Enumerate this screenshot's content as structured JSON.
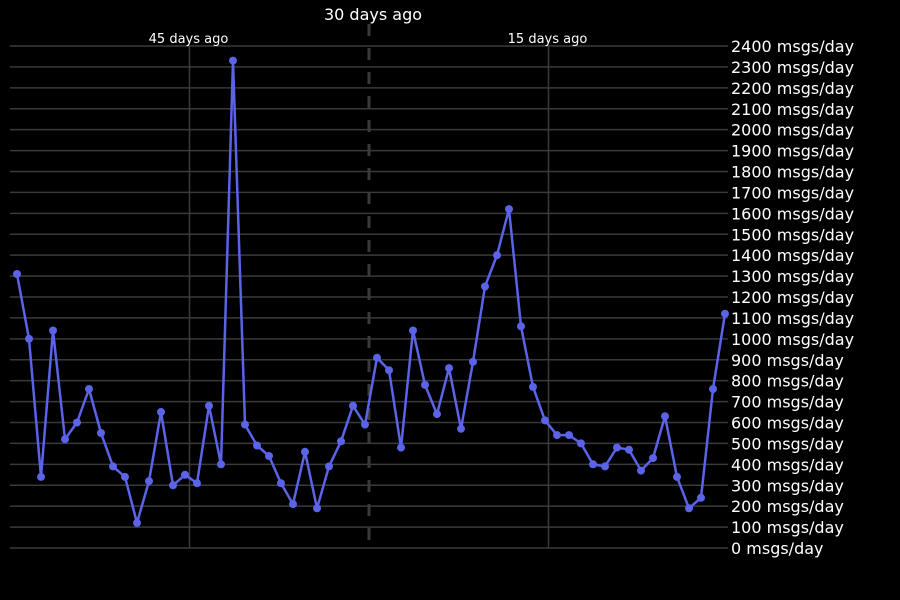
{
  "colors": {
    "background": "#000000",
    "grid": "#3a3a3a",
    "series": "#5b63e8",
    "text": "#ffffff"
  },
  "chart_data": {
    "type": "line",
    "title": "",
    "xlabel": "",
    "ylabel": "",
    "y_unit_suffix": " msgs/day",
    "ylim": [
      0,
      2400
    ],
    "y_ticks": [
      0,
      100,
      200,
      300,
      400,
      500,
      600,
      700,
      800,
      900,
      1000,
      1100,
      1200,
      1300,
      1400,
      1500,
      1600,
      1700,
      1800,
      1900,
      2000,
      2100,
      2200,
      2300,
      2400
    ],
    "x_axis": {
      "reversed": true,
      "range_days_ago": [
        60,
        0
      ],
      "ticks": [
        {
          "days_ago": 45,
          "label": "45 days ago",
          "style": "minor"
        },
        {
          "days_ago": 30,
          "label": "30 days ago",
          "style": "major"
        },
        {
          "days_ago": 15,
          "label": "15 days ago",
          "style": "minor"
        }
      ]
    },
    "grid": true,
    "legend": "none",
    "series": [
      {
        "values": [
          1310,
          1000,
          340,
          1040,
          520,
          600,
          760,
          550,
          390,
          340,
          120,
          320,
          650,
          300,
          350,
          310,
          680,
          400,
          2330,
          590,
          490,
          440,
          310,
          210,
          460,
          190,
          390,
          510,
          680,
          590,
          910,
          850,
          480,
          1040,
          780,
          640,
          860,
          570,
          890,
          1250,
          1400,
          1620,
          1060,
          770,
          610,
          540,
          540,
          500,
          400,
          390,
          480,
          470,
          370,
          430,
          630,
          340,
          190,
          240,
          760,
          1120
        ]
      }
    ]
  }
}
